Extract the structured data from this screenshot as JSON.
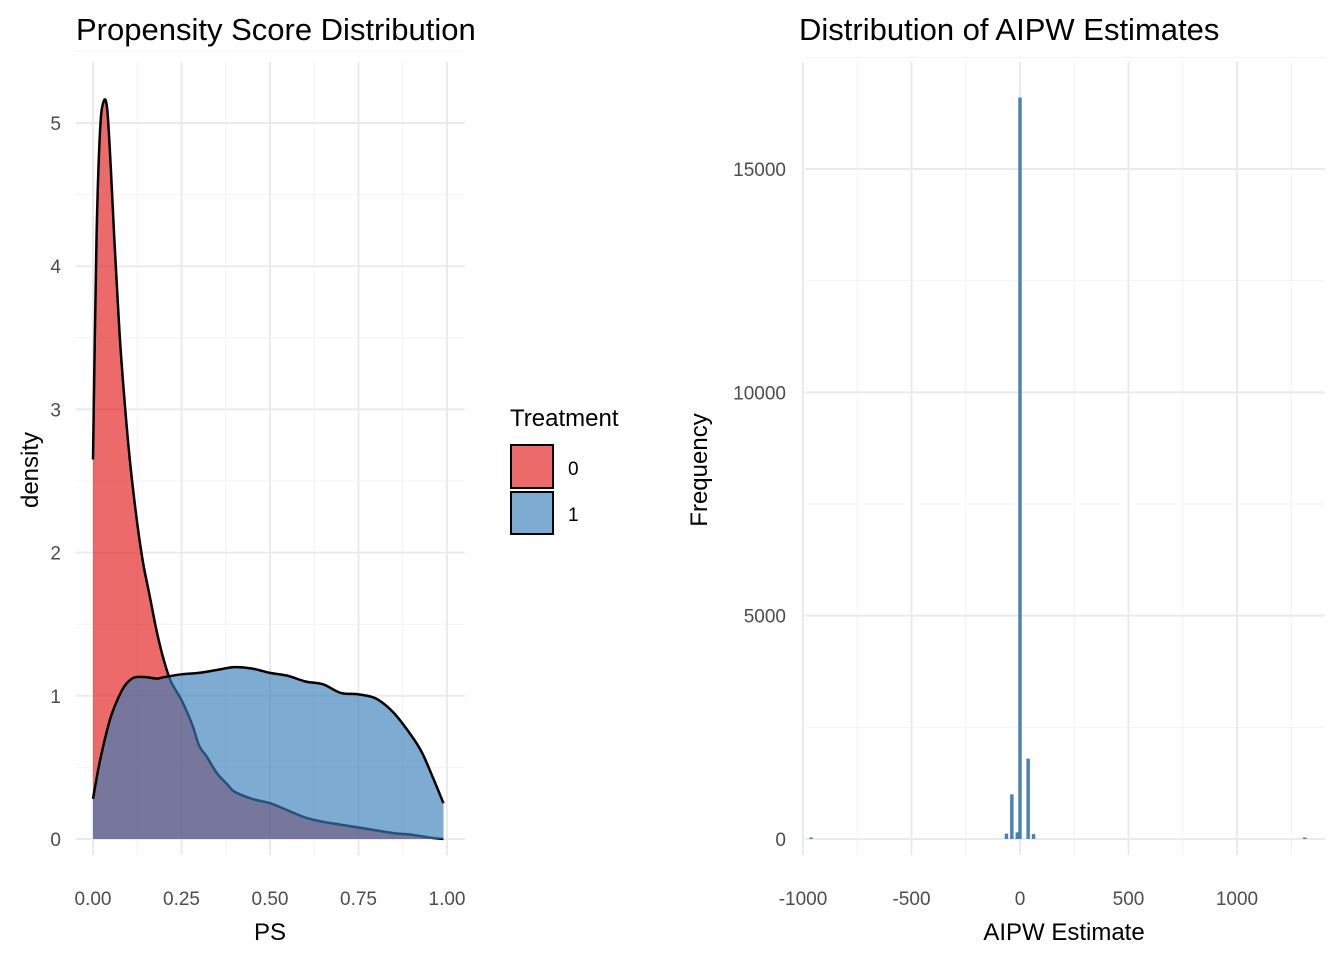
{
  "chart_data": [
    {
      "type": "area",
      "title": "Propensity Score Distribution",
      "xlabel": "PS",
      "ylabel": "density",
      "xlim": [
        0,
        1
      ],
      "ylim": [
        0,
        5.2
      ],
      "x_ticks": [
        0,
        0.25,
        0.5,
        0.75,
        1.0
      ],
      "x_tick_labels": [
        "0.00",
        "0.25",
        "0.50",
        "0.75",
        "1.00"
      ],
      "y_ticks": [
        0,
        1,
        2,
        3,
        4,
        5
      ],
      "y_tick_labels": [
        "0",
        "1",
        "2",
        "3",
        "4",
        "5"
      ],
      "grid": true,
      "legend": {
        "title": "Treatment",
        "position": "right"
      },
      "series": [
        {
          "name": "0",
          "color": "#E41A1C",
          "x": [
            0.0,
            0.01,
            0.02,
            0.03,
            0.04,
            0.05,
            0.06,
            0.07,
            0.08,
            0.1,
            0.12,
            0.14,
            0.16,
            0.18,
            0.2,
            0.22,
            0.25,
            0.28,
            0.3,
            0.32,
            0.35,
            0.38,
            0.4,
            0.45,
            0.5,
            0.55,
            0.6,
            0.65,
            0.7,
            0.75,
            0.8,
            0.85,
            0.9,
            0.95,
            0.99
          ],
          "y": [
            2.65,
            4.2,
            4.95,
            5.15,
            5.1,
            4.7,
            4.2,
            3.75,
            3.35,
            2.75,
            2.3,
            1.95,
            1.7,
            1.45,
            1.25,
            1.1,
            0.97,
            0.8,
            0.65,
            0.58,
            0.46,
            0.38,
            0.33,
            0.28,
            0.25,
            0.2,
            0.15,
            0.12,
            0.1,
            0.08,
            0.06,
            0.04,
            0.03,
            0.01,
            0.0
          ]
        },
        {
          "name": "1",
          "color": "#377EB8",
          "x": [
            0.0,
            0.02,
            0.05,
            0.08,
            0.1,
            0.12,
            0.15,
            0.18,
            0.2,
            0.25,
            0.3,
            0.35,
            0.4,
            0.45,
            0.5,
            0.55,
            0.6,
            0.65,
            0.7,
            0.75,
            0.8,
            0.85,
            0.9,
            0.93,
            0.96,
            0.99
          ],
          "y": [
            0.28,
            0.55,
            0.85,
            1.03,
            1.1,
            1.13,
            1.13,
            1.12,
            1.13,
            1.15,
            1.16,
            1.18,
            1.2,
            1.19,
            1.16,
            1.14,
            1.1,
            1.08,
            1.02,
            1.01,
            0.98,
            0.88,
            0.72,
            0.6,
            0.43,
            0.25
          ]
        }
      ]
    },
    {
      "type": "bar",
      "title": "Distribution of AIPW Estimates",
      "xlabel": "AIPW Estimate",
      "ylabel": "Frequency",
      "xlim": [
        -1000,
        1350
      ],
      "ylim": [
        0,
        16700
      ],
      "x_ticks": [
        -1000,
        -500,
        0,
        500,
        1000
      ],
      "x_tick_labels": [
        "-1000",
        "-500",
        "0",
        "500",
        "1000"
      ],
      "y_ticks": [
        0,
        5000,
        10000,
        15000
      ],
      "y_tick_labels": [
        "0",
        "5000",
        "10000",
        "15000"
      ],
      "grid": true,
      "color": "#4682B4",
      "bin_width": 25,
      "bins": [
        {
          "center": -62.5,
          "value": 120
        },
        {
          "center": -37.5,
          "value": 1000
        },
        {
          "center": -12.5,
          "value": 150
        },
        {
          "center": 0,
          "value": 16600
        },
        {
          "center": 37.5,
          "value": 1800
        },
        {
          "center": 62.5,
          "value": 110
        },
        {
          "center": -962.5,
          "value": 10
        },
        {
          "center": 1312.5,
          "value": 10
        }
      ]
    }
  ],
  "legend": {
    "title": "Treatment",
    "items": [
      {
        "label": "0",
        "color": "#E41A1C"
      },
      {
        "label": "1",
        "color": "#377EB8"
      }
    ]
  }
}
